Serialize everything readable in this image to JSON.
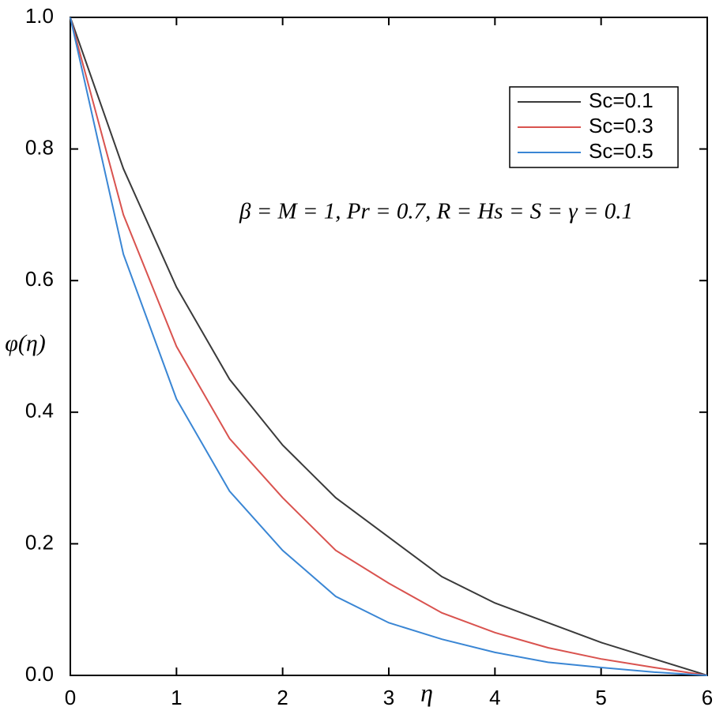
{
  "chart_data": {
    "type": "line",
    "xlabel": "η",
    "ylabel": "φ(η)",
    "annotation": "β = M = 1, Pr = 0.7, R = Hs = S = γ = 0.1",
    "x": [
      0,
      0.5,
      1,
      1.5,
      2,
      2.5,
      3,
      3.5,
      4,
      4.5,
      5,
      5.5,
      6
    ],
    "series": [
      {
        "name": "Sc=0.1",
        "color": "#3a3a3a",
        "values": [
          1,
          0.77,
          0.59,
          0.45,
          0.35,
          0.27,
          0.21,
          0.15,
          0.11,
          0.08,
          0.05,
          0.025,
          0
        ]
      },
      {
        "name": "Sc=0.3",
        "color": "#d9534f",
        "values": [
          1,
          0.7,
          0.5,
          0.36,
          0.27,
          0.19,
          0.14,
          0.095,
          0.065,
          0.042,
          0.025,
          0.012,
          0
        ]
      },
      {
        "name": "Sc=0.5",
        "color": "#3a86d4",
        "values": [
          1,
          0.64,
          0.42,
          0.28,
          0.19,
          0.12,
          0.08,
          0.055,
          0.035,
          0.02,
          0.012,
          0.005,
          0
        ]
      }
    ],
    "xlim": [
      0,
      6
    ],
    "xticks": [
      0,
      1,
      2,
      3,
      4,
      5,
      6
    ],
    "ylim": [
      0,
      1
    ],
    "yticks": [
      {
        "value": 0,
        "label": "0.0"
      },
      0.2,
      0.4,
      0.6,
      0.8,
      {
        "value": 1,
        "label": "1.0"
      }
    ],
    "legend": "upper right"
  }
}
